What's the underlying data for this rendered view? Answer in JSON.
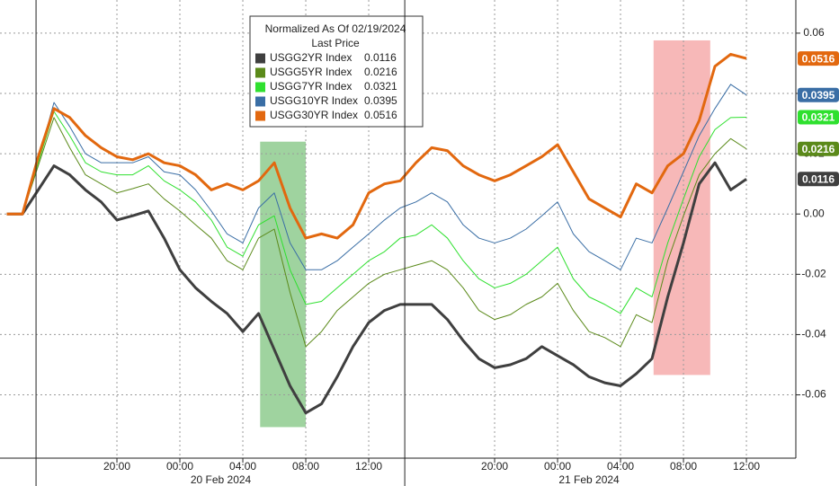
{
  "chart_data": {
    "type": "line",
    "legend_title": "Normalized As Of 02/19/2024",
    "legend_subtitle": "Last Price",
    "x": [
      13,
      14,
      15,
      16,
      17,
      18,
      19,
      20,
      21,
      22,
      23,
      24,
      25,
      26,
      27,
      28,
      29,
      30,
      31,
      32,
      33,
      34,
      35,
      36,
      37,
      38,
      39,
      40,
      41,
      42,
      43,
      44,
      45,
      46,
      47,
      48,
      49,
      50,
      51,
      52,
      53,
      54,
      55,
      56,
      57,
      58,
      59,
      60
    ],
    "series": [
      {
        "name": "USGG2YR Index",
        "color": "#3f3f3f",
        "width": 3,
        "values": [
          0,
          0,
          0.008,
          0.016,
          0.013,
          0.008,
          0.004,
          -0.002,
          -0.0006,
          0.001,
          -0.008,
          -0.0185,
          -0.0245,
          -0.029,
          -0.033,
          -0.039,
          -0.033,
          -0.045,
          -0.057,
          -0.066,
          -0.063,
          -0.054,
          -0.044,
          -0.036,
          -0.032,
          -0.03,
          -0.03,
          -0.03,
          -0.035,
          -0.042,
          -0.048,
          -0.051,
          -0.05,
          -0.048,
          -0.044,
          -0.047,
          -0.05,
          -0.054,
          -0.056,
          -0.057,
          -0.053,
          -0.048,
          -0.0275,
          -0.0096,
          0.01,
          0.017,
          0.008,
          0.0116
        ]
      },
      {
        "name": "USGG5YR Index",
        "color": "#5b8a1a",
        "width": 1,
        "values": [
          0,
          0,
          0.016,
          0.032,
          0.022,
          0.013,
          0.01,
          0.007,
          0.0084,
          0.01,
          0.005,
          0.001,
          -0.0036,
          -0.008,
          -0.0155,
          -0.0185,
          -0.008,
          -0.005,
          -0.026,
          -0.044,
          -0.039,
          -0.032,
          -0.0275,
          -0.023,
          -0.02,
          -0.0185,
          -0.017,
          -0.0155,
          -0.0185,
          -0.0245,
          -0.032,
          -0.035,
          -0.0334,
          -0.03,
          -0.0275,
          -0.023,
          -0.032,
          -0.039,
          -0.041,
          -0.044,
          -0.0334,
          -0.036,
          -0.0155,
          -0.0006,
          0.013,
          0.02,
          0.025,
          0.0216
        ]
      },
      {
        "name": "USGG7YR Index",
        "color": "#2fe02f",
        "width": 1,
        "values": [
          0,
          0,
          0.017,
          0.034,
          0.026,
          0.017,
          0.014,
          0.013,
          0.013,
          0.016,
          0.011,
          0.008,
          0.004,
          -0.002,
          -0.011,
          -0.014,
          -0.0036,
          -0.0006,
          -0.0185,
          -0.03,
          -0.029,
          -0.0245,
          -0.02,
          -0.0155,
          -0.0125,
          -0.008,
          -0.007,
          -0.0036,
          -0.008,
          -0.0155,
          -0.0215,
          -0.0245,
          -0.023,
          -0.02,
          -0.0155,
          -0.011,
          -0.0215,
          -0.0275,
          -0.03,
          -0.033,
          -0.0245,
          -0.0275,
          -0.0096,
          0.005,
          0.019,
          0.028,
          0.032,
          0.0321
        ]
      },
      {
        "name": "USGG10YR Index",
        "color": "#3a6ea5",
        "width": 1,
        "values": [
          0,
          0,
          0.018,
          0.037,
          0.029,
          0.02,
          0.017,
          0.017,
          0.017,
          0.019,
          0.014,
          0.013,
          0.008,
          0.001,
          -0.0066,
          -0.0096,
          0.002,
          0.007,
          -0.0096,
          -0.0185,
          -0.0185,
          -0.0155,
          -0.011,
          -0.0066,
          -0.002,
          0.002,
          0.004,
          0.007,
          0.004,
          -0.0036,
          -0.008,
          -0.0096,
          -0.008,
          -0.005,
          -0.0006,
          0.004,
          -0.0066,
          -0.0125,
          -0.0155,
          -0.0185,
          -0.008,
          -0.0096,
          0.002,
          0.014,
          0.026,
          0.035,
          0.043,
          0.0395
        ]
      },
      {
        "name": "USGG30YR Index",
        "color": "#e2680f",
        "width": 3,
        "values": [
          0,
          0,
          0.019,
          0.035,
          0.032,
          0.026,
          0.022,
          0.019,
          0.018,
          0.02,
          0.017,
          0.016,
          0.013,
          0.008,
          0.01,
          0.008,
          0.011,
          0.017,
          0.002,
          -0.008,
          -0.0066,
          -0.008,
          -0.0036,
          0.007,
          0.01,
          0.011,
          0.017,
          0.022,
          0.021,
          0.016,
          0.013,
          0.011,
          0.013,
          0.016,
          0.019,
          0.023,
          0.014,
          0.005,
          0.002,
          -0.001,
          0.01,
          0.007,
          0.016,
          0.02,
          0.031,
          0.049,
          0.053,
          0.0516
        ]
      }
    ],
    "xlim": [
      12.57,
      63.14
    ],
    "ylim": [
      -0.081,
      0.071
    ],
    "xticks": [
      {
        "value": 20,
        "label": "20:00"
      },
      {
        "value": 24,
        "label": "00:00"
      },
      {
        "value": 28,
        "label": "04:00"
      },
      {
        "value": 32,
        "label": "08:00"
      },
      {
        "value": 36,
        "label": "12:00"
      },
      {
        "value": 44,
        "label": "20:00"
      },
      {
        "value": 48,
        "label": "00:00"
      },
      {
        "value": 52,
        "label": "04:00"
      },
      {
        "value": 56,
        "label": "08:00"
      },
      {
        "value": 60,
        "label": "12:00"
      }
    ],
    "yticks": [
      0.06,
      0.04,
      0.02,
      {
        "value": 0,
        "label": "0.00"
      },
      -0.02,
      -0.04,
      -0.06
    ],
    "date_labels": [
      {
        "value": 26.6,
        "label": "20 Feb 2024"
      },
      {
        "value": 50,
        "label": "21 Feb 2024"
      }
    ],
    "separators": [
      14.86,
      38.29
    ],
    "highlights": [
      {
        "x": [
          29.1,
          32
        ],
        "y": [
          0.024,
          -0.0707
        ],
        "color": "#7fc47f"
      },
      {
        "x": [
          54.1,
          57.7
        ],
        "y": [
          0.0576,
          -0.0534
        ],
        "color": "#f4a0a0"
      }
    ],
    "grid": true,
    "draw_order": [
      3,
      2,
      1,
      0,
      4
    ]
  }
}
